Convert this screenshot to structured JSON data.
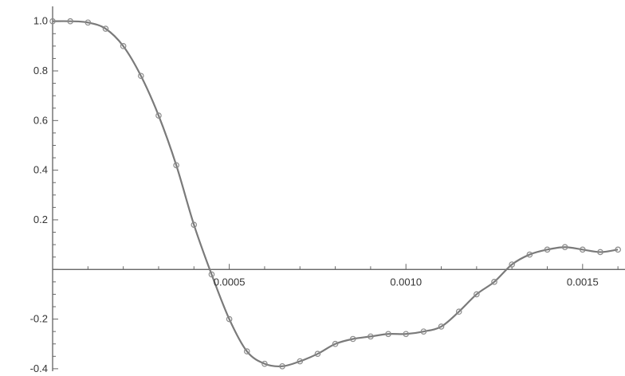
{
  "chart_data": {
    "type": "line",
    "title": "",
    "xlabel": "",
    "ylabel": "",
    "xlim": [
      0,
      0.00162
    ],
    "ylim": [
      -0.41,
      1.06
    ],
    "grid": false,
    "x_ticks": [
      {
        "value": 0.0005,
        "label": "0.0005"
      },
      {
        "value": 0.001,
        "label": "0.0010"
      },
      {
        "value": 0.0015,
        "label": "0.0015"
      }
    ],
    "y_ticks": [
      {
        "value": 1.0,
        "label": "1.0"
      },
      {
        "value": 0.8,
        "label": "0.8"
      },
      {
        "value": 0.6,
        "label": "0.6"
      },
      {
        "value": 0.4,
        "label": "0.4"
      },
      {
        "value": 0.2,
        "label": "0.2"
      },
      {
        "value": -0.2,
        "label": "-0.2"
      },
      {
        "value": -0.4,
        "label": "-0.4"
      }
    ],
    "series": [
      {
        "color": "#7a7a7a",
        "marker": "circle",
        "x": [
          0,
          5e-05,
          0.0001,
          0.00015,
          0.0002,
          0.00025,
          0.0003,
          0.00035,
          0.0004,
          0.00045,
          0.0005,
          0.00055,
          0.0006,
          0.00065,
          0.0007,
          0.00075,
          0.0008,
          0.00085,
          0.0009,
          0.00095,
          0.001,
          0.00105,
          0.0011,
          0.00115,
          0.0012,
          0.00125,
          0.0013,
          0.00135,
          0.0014,
          0.00145,
          0.0015,
          0.00155,
          0.0016
        ],
        "y": [
          1.0,
          1.0,
          0.995,
          0.97,
          0.9,
          0.78,
          0.62,
          0.42,
          0.18,
          -0.02,
          -0.2,
          -0.33,
          -0.38,
          -0.39,
          -0.37,
          -0.34,
          -0.3,
          -0.28,
          -0.27,
          -0.26,
          -0.26,
          -0.25,
          -0.23,
          -0.17,
          -0.1,
          -0.05,
          0.02,
          0.06,
          0.08,
          0.09,
          0.08,
          0.07,
          0.08
        ]
      }
    ]
  }
}
